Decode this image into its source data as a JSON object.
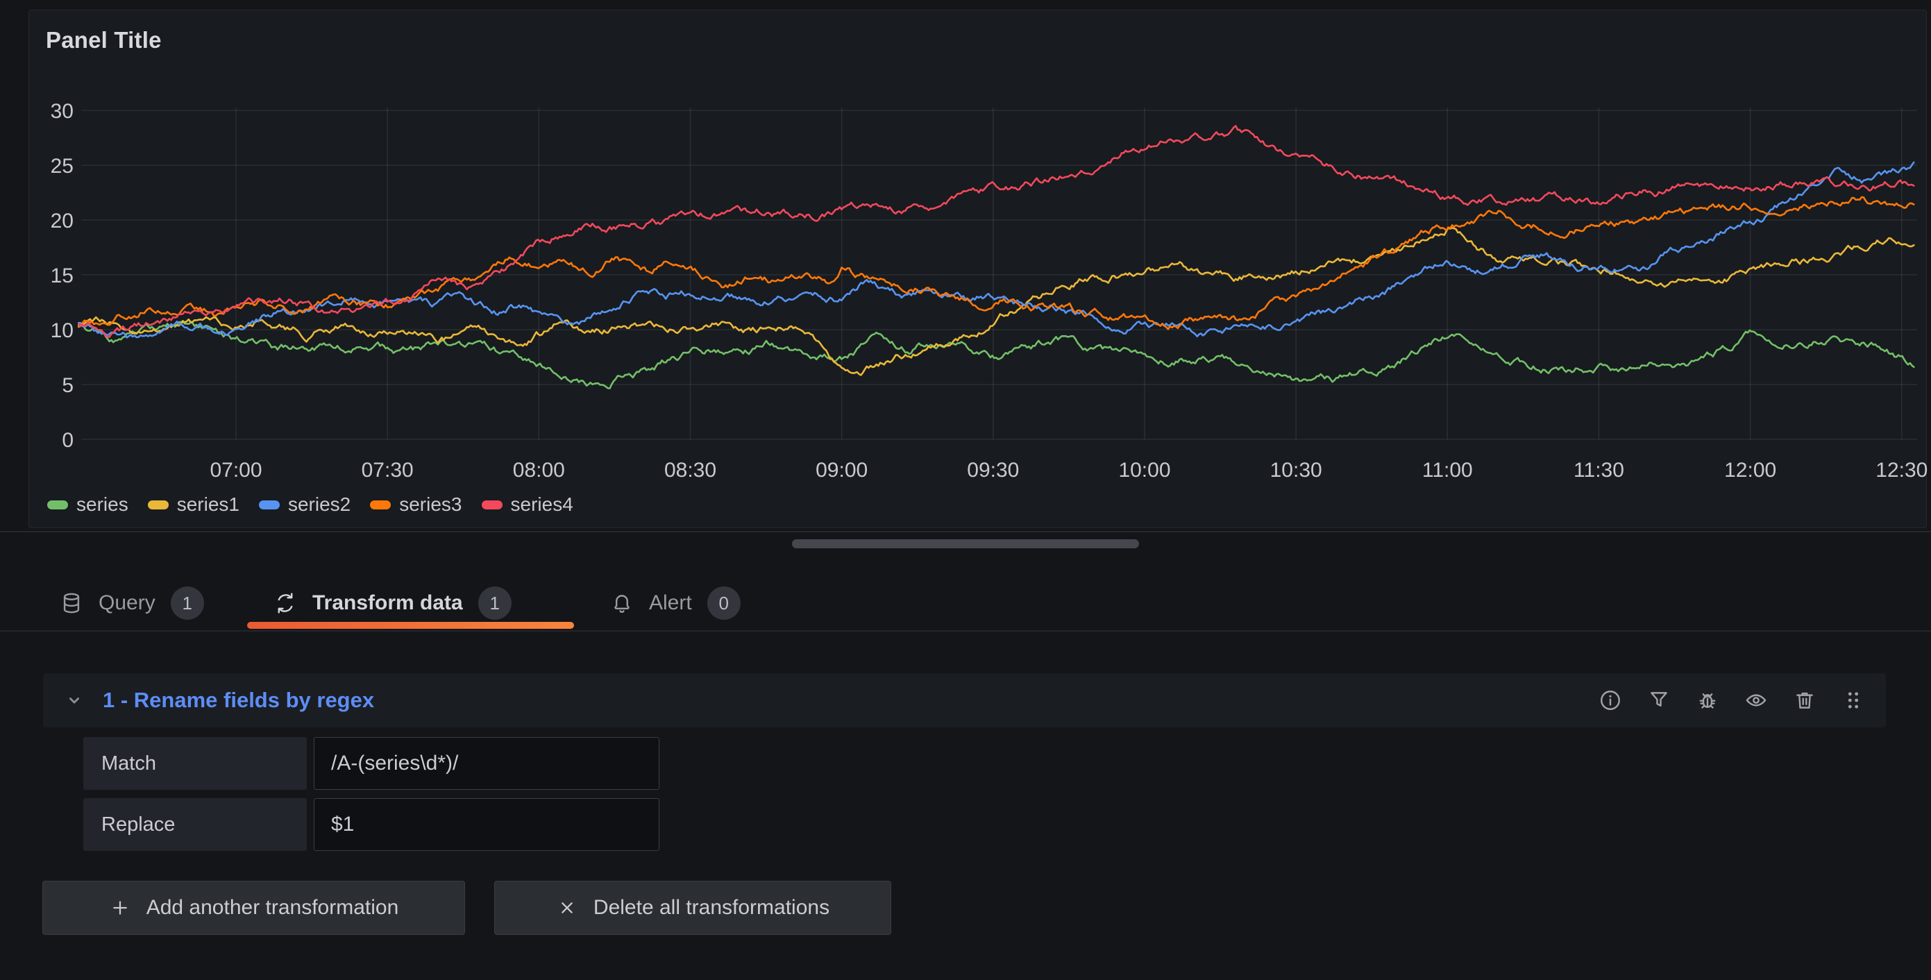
{
  "panel": {
    "title": "Panel Title"
  },
  "chart_data": {
    "type": "line",
    "title": "",
    "xlabel": "",
    "ylabel": "",
    "x_axis": {
      "ticks": [
        "07:00",
        "07:30",
        "08:00",
        "08:30",
        "09:00",
        "09:30",
        "10:00",
        "10:30",
        "11:00",
        "11:30",
        "12:00",
        "12:30"
      ],
      "start_hour": 6.48,
      "end_hour": 12.54
    },
    "y_axis": {
      "ticks": [
        0,
        5,
        10,
        15,
        20,
        25,
        30
      ],
      "range": [
        0,
        30
      ]
    },
    "grid": true,
    "legend_position": "bottom",
    "series": [
      {
        "name": "series",
        "color": "#73bf69",
        "seed": 7,
        "points": [
          [
            6.48,
            10.3
          ],
          [
            6.6,
            9.4
          ],
          [
            6.72,
            10.1
          ],
          [
            6.85,
            10.4
          ],
          [
            7.0,
            9.3
          ],
          [
            7.13,
            8.4
          ],
          [
            7.25,
            8.2
          ],
          [
            7.33,
            8.7
          ],
          [
            7.45,
            8.2
          ],
          [
            7.58,
            8.0
          ],
          [
            7.67,
            8.5
          ],
          [
            7.8,
            8.2
          ],
          [
            7.92,
            7.4
          ],
          [
            8.0,
            6.7
          ],
          [
            8.08,
            5.5
          ],
          [
            8.17,
            4.8
          ],
          [
            8.28,
            5.7
          ],
          [
            8.38,
            6.5
          ],
          [
            8.47,
            7.5
          ],
          [
            8.58,
            8.2
          ],
          [
            8.67,
            7.8
          ],
          [
            8.75,
            8.6
          ],
          [
            8.87,
            8.2
          ],
          [
            9.0,
            7.7
          ],
          [
            9.12,
            9.2
          ],
          [
            9.22,
            8.2
          ],
          [
            9.3,
            8.8
          ],
          [
            9.42,
            8.2
          ],
          [
            9.53,
            7.6
          ],
          [
            9.65,
            8.6
          ],
          [
            9.75,
            9.0
          ],
          [
            9.85,
            8.1
          ],
          [
            9.95,
            7.6
          ],
          [
            10.08,
            7.3
          ],
          [
            10.2,
            7.6
          ],
          [
            10.3,
            7.2
          ],
          [
            10.42,
            6.4
          ],
          [
            10.53,
            5.5
          ],
          [
            10.62,
            5.3
          ],
          [
            10.72,
            6.0
          ],
          [
            10.83,
            7.0
          ],
          [
            10.92,
            8.3
          ],
          [
            11.0,
            9.6
          ],
          [
            11.08,
            8.7
          ],
          [
            11.17,
            7.9
          ],
          [
            11.28,
            6.9
          ],
          [
            11.4,
            6.3
          ],
          [
            11.5,
            6.7
          ],
          [
            11.58,
            6.3
          ],
          [
            11.68,
            7.0
          ],
          [
            11.78,
            6.7
          ],
          [
            11.88,
            7.6
          ],
          [
            12.0,
            9.7
          ],
          [
            12.08,
            8.9
          ],
          [
            12.17,
            9.0
          ],
          [
            12.28,
            9.4
          ],
          [
            12.37,
            8.8
          ],
          [
            12.45,
            8.1
          ],
          [
            12.54,
            7.0
          ]
        ]
      },
      {
        "name": "series1",
        "color": "#eab839",
        "seed": 13,
        "points": [
          [
            6.48,
            10.5
          ],
          [
            6.58,
            10.9
          ],
          [
            6.75,
            9.9
          ],
          [
            6.87,
            10.7
          ],
          [
            7.0,
            10.1
          ],
          [
            7.1,
            11.0
          ],
          [
            7.23,
            9.7
          ],
          [
            7.33,
            10.4
          ],
          [
            7.45,
            9.8
          ],
          [
            7.55,
            10.3
          ],
          [
            7.7,
            9.3
          ],
          [
            7.8,
            9.9
          ],
          [
            7.92,
            9.1
          ],
          [
            8.0,
            9.7
          ],
          [
            8.08,
            10.9
          ],
          [
            8.17,
            9.9
          ],
          [
            8.3,
            10.4
          ],
          [
            8.45,
            9.9
          ],
          [
            8.58,
            10.5
          ],
          [
            8.7,
            9.7
          ],
          [
            8.83,
            10.3
          ],
          [
            8.92,
            8.7
          ],
          [
            9.0,
            6.2
          ],
          [
            9.05,
            5.8
          ],
          [
            9.17,
            7.4
          ],
          [
            9.3,
            8.4
          ],
          [
            9.4,
            9.2
          ],
          [
            9.55,
            11.6
          ],
          [
            9.7,
            13.4
          ],
          [
            9.83,
            14.9
          ],
          [
            9.95,
            15.4
          ],
          [
            10.08,
            16.1
          ],
          [
            10.2,
            15.2
          ],
          [
            10.3,
            14.6
          ],
          [
            10.42,
            15.1
          ],
          [
            10.55,
            15.7
          ],
          [
            10.67,
            16.1
          ],
          [
            10.78,
            16.7
          ],
          [
            10.88,
            17.5
          ],
          [
            11.0,
            19.4
          ],
          [
            11.08,
            17.9
          ],
          [
            11.17,
            16.6
          ],
          [
            11.28,
            16.8
          ],
          [
            11.38,
            16.1
          ],
          [
            11.5,
            15.7
          ],
          [
            11.62,
            15.0
          ],
          [
            11.73,
            13.7
          ],
          [
            11.83,
            14.4
          ],
          [
            11.95,
            14.9
          ],
          [
            12.05,
            15.3
          ],
          [
            12.15,
            16.3
          ],
          [
            12.25,
            16.5
          ],
          [
            12.37,
            17.4
          ],
          [
            12.45,
            18.2
          ],
          [
            12.54,
            17.8
          ]
        ]
      },
      {
        "name": "series2",
        "color": "#5794f2",
        "seed": 29,
        "points": [
          [
            6.48,
            10.4
          ],
          [
            6.58,
            9.2
          ],
          [
            6.67,
            8.9
          ],
          [
            6.8,
            10.2
          ],
          [
            7.0,
            10.0
          ],
          [
            7.13,
            11.4
          ],
          [
            7.28,
            12.4
          ],
          [
            7.37,
            12.9
          ],
          [
            7.45,
            12.3
          ],
          [
            7.53,
            12.8
          ],
          [
            7.67,
            12.2
          ],
          [
            7.75,
            12.8
          ],
          [
            7.87,
            11.8
          ],
          [
            7.95,
            12.3
          ],
          [
            8.05,
            10.9
          ],
          [
            8.12,
            10.4
          ],
          [
            8.25,
            12.2
          ],
          [
            8.33,
            13.5
          ],
          [
            8.42,
            13.2
          ],
          [
            8.5,
            13.3
          ],
          [
            8.62,
            13.0
          ],
          [
            8.78,
            12.6
          ],
          [
            8.92,
            13.1
          ],
          [
            9.0,
            12.8
          ],
          [
            9.08,
            14.3
          ],
          [
            9.2,
            12.9
          ],
          [
            9.28,
            13.6
          ],
          [
            9.42,
            12.8
          ],
          [
            9.5,
            13.1
          ],
          [
            9.62,
            12.2
          ],
          [
            9.75,
            11.7
          ],
          [
            9.83,
            11.2
          ],
          [
            9.95,
            10.5
          ],
          [
            10.08,
            10.2
          ],
          [
            10.17,
            9.8
          ],
          [
            10.28,
            10.1
          ],
          [
            10.42,
            10.4
          ],
          [
            10.53,
            11.0
          ],
          [
            10.67,
            12.1
          ],
          [
            10.78,
            13.3
          ],
          [
            10.88,
            14.6
          ],
          [
            11.0,
            16.4
          ],
          [
            11.1,
            15.7
          ],
          [
            11.22,
            16.0
          ],
          [
            11.32,
            16.6
          ],
          [
            11.42,
            15.7
          ],
          [
            11.53,
            16.1
          ],
          [
            11.63,
            15.8
          ],
          [
            11.75,
            17.2
          ],
          [
            11.85,
            18.4
          ],
          [
            11.95,
            19.4
          ],
          [
            12.05,
            20.3
          ],
          [
            12.13,
            21.9
          ],
          [
            12.22,
            23.2
          ],
          [
            12.3,
            24.4
          ],
          [
            12.37,
            23.7
          ],
          [
            12.45,
            24.3
          ],
          [
            12.54,
            25.2
          ]
        ]
      },
      {
        "name": "series3",
        "color": "#ff780a",
        "seed": 41,
        "points": [
          [
            6.48,
            10.4
          ],
          [
            6.6,
            11.1
          ],
          [
            6.7,
            11.9
          ],
          [
            6.83,
            12.3
          ],
          [
            6.95,
            11.3
          ],
          [
            7.08,
            12.5
          ],
          [
            7.2,
            11.9
          ],
          [
            7.33,
            12.6
          ],
          [
            7.5,
            12.1
          ],
          [
            7.67,
            13.7
          ],
          [
            7.8,
            14.9
          ],
          [
            7.9,
            16.6
          ],
          [
            8.0,
            15.8
          ],
          [
            8.08,
            16.4
          ],
          [
            8.17,
            15.2
          ],
          [
            8.25,
            16.4
          ],
          [
            8.37,
            15.3
          ],
          [
            8.42,
            16.9
          ],
          [
            8.53,
            15.5
          ],
          [
            8.62,
            14.3
          ],
          [
            8.7,
            15.1
          ],
          [
            8.8,
            14.4
          ],
          [
            8.87,
            15.3
          ],
          [
            8.95,
            14.7
          ],
          [
            9.0,
            15.9
          ],
          [
            9.08,
            14.7
          ],
          [
            9.17,
            13.7
          ],
          [
            9.25,
            13.9
          ],
          [
            9.33,
            12.9
          ],
          [
            9.45,
            12.4
          ],
          [
            9.53,
            12.8
          ],
          [
            9.67,
            12.1
          ],
          [
            9.83,
            11.3
          ],
          [
            9.95,
            10.9
          ],
          [
            10.08,
            10.5
          ],
          [
            10.2,
            11.2
          ],
          [
            10.3,
            10.8
          ],
          [
            10.42,
            12.1
          ],
          [
            10.53,
            13.2
          ],
          [
            10.63,
            14.4
          ],
          [
            10.72,
            15.9
          ],
          [
            10.83,
            17.4
          ],
          [
            10.92,
            18.8
          ],
          [
            11.0,
            19.5
          ],
          [
            11.08,
            20.1
          ],
          [
            11.17,
            20.6
          ],
          [
            11.27,
            19.8
          ],
          [
            11.38,
            19.2
          ],
          [
            11.5,
            20.0
          ],
          [
            11.62,
            19.7
          ],
          [
            11.75,
            20.5
          ],
          [
            11.88,
            21.0
          ],
          [
            12.0,
            21.4
          ],
          [
            12.12,
            20.8
          ],
          [
            12.25,
            21.6
          ],
          [
            12.37,
            22.2
          ],
          [
            12.45,
            21.4
          ],
          [
            12.54,
            21.9
          ]
        ]
      },
      {
        "name": "series4",
        "color": "#f2495c",
        "seed": 53,
        "points": [
          [
            6.48,
            10.3
          ],
          [
            6.6,
            9.8
          ],
          [
            6.75,
            10.7
          ],
          [
            6.9,
            12.0
          ],
          [
            7.05,
            12.6
          ],
          [
            7.17,
            12.9
          ],
          [
            7.28,
            12.0
          ],
          [
            7.42,
            11.8
          ],
          [
            7.55,
            12.8
          ],
          [
            7.67,
            14.6
          ],
          [
            7.78,
            13.9
          ],
          [
            7.9,
            15.8
          ],
          [
            8.0,
            18.0
          ],
          [
            8.15,
            19.6
          ],
          [
            8.3,
            19.4
          ],
          [
            8.45,
            20.0
          ],
          [
            8.6,
            20.4
          ],
          [
            8.75,
            20.9
          ],
          [
            8.9,
            20.5
          ],
          [
            9.05,
            21.2
          ],
          [
            9.2,
            20.8
          ],
          [
            9.35,
            21.8
          ],
          [
            9.5,
            22.8
          ],
          [
            9.65,
            23.4
          ],
          [
            9.8,
            24.6
          ],
          [
            9.95,
            26.5
          ],
          [
            10.1,
            27.3
          ],
          [
            10.3,
            28.2
          ],
          [
            10.42,
            26.4
          ],
          [
            10.55,
            25.7
          ],
          [
            10.67,
            24.4
          ],
          [
            10.8,
            23.6
          ],
          [
            10.92,
            22.6
          ],
          [
            11.05,
            21.9
          ],
          [
            11.2,
            21.8
          ],
          [
            11.35,
            22.0
          ],
          [
            11.47,
            21.6
          ],
          [
            11.6,
            22.4
          ],
          [
            11.75,
            22.9
          ],
          [
            11.9,
            23.3
          ],
          [
            12.05,
            23.0
          ],
          [
            12.2,
            23.6
          ],
          [
            12.35,
            23.1
          ],
          [
            12.54,
            23.4
          ]
        ]
      }
    ]
  },
  "tabs": [
    {
      "label": "Query",
      "count": "1",
      "icon": "database-icon",
      "active": false
    },
    {
      "label": "Transform data",
      "count": "1",
      "icon": "transform-icon",
      "active": true
    },
    {
      "label": "Alert",
      "count": "0",
      "icon": "bell-icon",
      "active": false
    }
  ],
  "transform": {
    "title": "1 - Rename fields by regex",
    "fields": [
      {
        "label": "Match",
        "value": "/A-(series\\d*)/"
      },
      {
        "label": "Replace",
        "value": "$1"
      }
    ],
    "actions": [
      "info",
      "filter",
      "debug",
      "eye",
      "trash",
      "drag-handle"
    ]
  },
  "buttons": {
    "add": "Add another transformation",
    "delete": "Delete all transformations"
  },
  "colors": {
    "page_bg": "#141519",
    "panel_bg": "#181b1f",
    "accent_orange": "#ff780a",
    "link_blue": "#5d8df6",
    "text": "#ccccdc"
  }
}
